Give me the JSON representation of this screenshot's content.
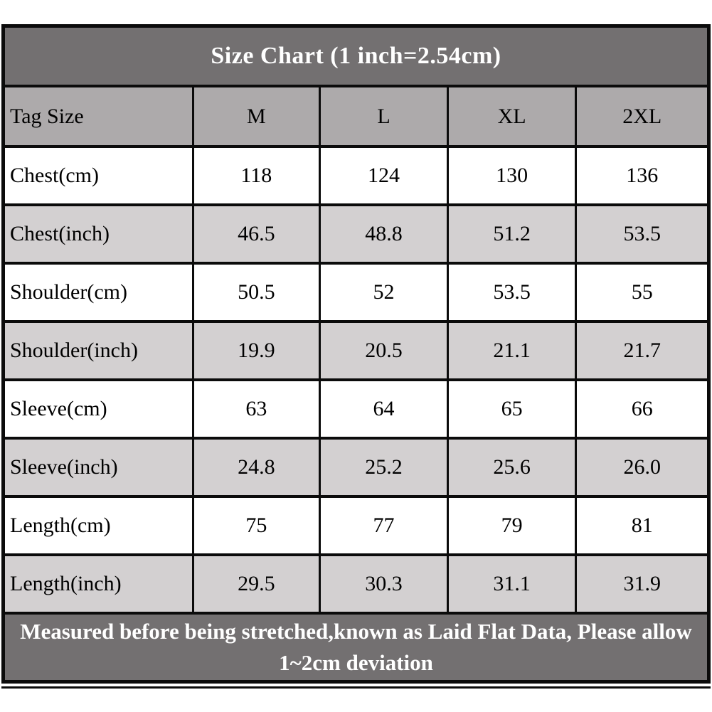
{
  "chart_data": {
    "type": "table",
    "title": "Size Chart (1 inch=2.54cm)",
    "columns": [
      "Tag Size",
      "M",
      "L",
      "XL",
      "2XL"
    ],
    "rows": [
      {
        "label": "Chest(cm)",
        "values": [
          "118",
          "124",
          "130",
          "136"
        ]
      },
      {
        "label": "Chest(inch)",
        "values": [
          "46.5",
          "48.8",
          "51.2",
          "53.5"
        ]
      },
      {
        "label": "Shoulder(cm)",
        "values": [
          "50.5",
          "52",
          "53.5",
          "55"
        ]
      },
      {
        "label": "Shoulder(inch)",
        "values": [
          "19.9",
          "20.5",
          "21.1",
          "21.7"
        ]
      },
      {
        "label": "Sleeve(cm)",
        "values": [
          "63",
          "64",
          "65",
          "66"
        ]
      },
      {
        "label": "Sleeve(inch)",
        "values": [
          "24.8",
          "25.2",
          "25.6",
          "26.0"
        ]
      },
      {
        "label": "Length(cm)",
        "values": [
          "75",
          "77",
          "79",
          "81"
        ]
      },
      {
        "label": "Length(inch)",
        "values": [
          "29.5",
          "30.3",
          "31.1",
          "31.9"
        ]
      }
    ],
    "footer_note": "Measured before being stretched,known as Laid Flat Data, Please allow 1~2cm deviation",
    "layout_hints": {
      "row_striping": [
        "white",
        "gray"
      ],
      "label_alignment": "left",
      "value_alignment": "center"
    }
  },
  "colors": {
    "title_band_bg": "#737071",
    "header_row_bg": "#adaaab",
    "row_white_bg": "#ffffff",
    "row_gray_bg": "#d3d0d1",
    "border": "#0b0b0b",
    "title_text": "#ffffff",
    "body_text": "#000000",
    "footer_text": "#ffffff"
  }
}
